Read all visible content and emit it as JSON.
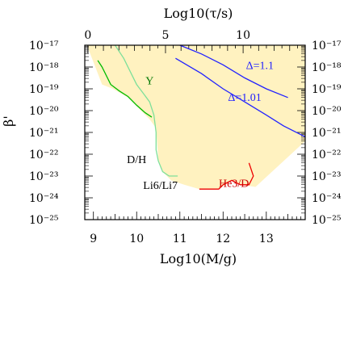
{
  "chart_data": {
    "type": "area",
    "title": "",
    "xlabel": "Log10(M/g)",
    "ylabel": "β'",
    "top_xlabel": "Log10(τ/s)",
    "xlim": [
      8.8,
      13.9
    ],
    "ylim": [
      -25,
      -17
    ],
    "top_xlim": [
      -0.2,
      14.0
    ],
    "bottom_ticks": [
      9,
      10,
      11,
      12,
      13
    ],
    "bottom_tick_labels": [
      "9",
      "10",
      "11",
      "12",
      "13"
    ],
    "top_ticks": [
      0,
      5,
      10
    ],
    "top_tick_labels": [
      "0",
      "5",
      "10"
    ],
    "y_ticks": [
      -17,
      -18,
      -19,
      -20,
      -21,
      -22,
      -23,
      -24,
      -25
    ],
    "y_tick_labels": [
      "10⁻¹⁷",
      "10⁻¹⁸",
      "10⁻¹⁹",
      "10⁻²⁰",
      "10⁻²¹",
      "10⁻²²",
      "10⁻²³",
      "10⁻²⁴",
      "10⁻²⁵"
    ],
    "allowed_region": {
      "name": "allowed region",
      "color": "#fff2c0",
      "x": [
        8.85,
        9.75,
        10.7,
        13.9,
        13.9,
        12.75,
        12.4,
        12.2,
        11.9,
        11.45,
        11.1,
        10.8,
        10.6,
        10.5,
        10.45,
        10.3,
        10.1,
        9.8,
        9.45,
        9.2,
        8.85
      ],
      "y": [
        -16.9,
        -16.9,
        -16.9,
        -16.9,
        -21.4,
        -23.5,
        -23.4,
        -23.2,
        -23.6,
        -23.6,
        -23.4,
        -23.2,
        -22.8,
        -22.2,
        -20.8,
        -20.4,
        -20.0,
        -19.4,
        -19.0,
        -18.8,
        -16.9
      ]
    },
    "series": [
      {
        "name": "",
        "color": "#00bb00",
        "x": [
          9.1,
          9.2,
          9.4,
          9.6,
          9.8,
          10.0,
          10.2,
          10.35
        ],
        "y": [
          -17.7,
          -18.0,
          -18.8,
          -19.1,
          -19.35,
          -19.75,
          -20.1,
          -20.3
        ]
      },
      {
        "name": "",
        "color": "#7de09a",
        "x": [
          9.5,
          9.7,
          9.85,
          10.0,
          10.15,
          10.3,
          10.4,
          10.45,
          10.45,
          10.5,
          10.6,
          10.75,
          10.95
        ],
        "y": [
          -17.0,
          -17.6,
          -18.2,
          -18.8,
          -19.2,
          -19.6,
          -20.2,
          -21.0,
          -21.8,
          -22.3,
          -22.8,
          -23.0,
          -23.0
        ]
      },
      {
        "name": "",
        "color": "#2222ff",
        "x": [
          11.0,
          11.5,
          12.0,
          12.5,
          13.0,
          13.5
        ],
        "y": [
          -16.9,
          -17.4,
          -17.9,
          -18.5,
          -19.0,
          -19.4
        ]
      },
      {
        "name": "",
        "color": "#2222ff",
        "x": [
          10.9,
          11.5,
          12.0,
          12.5,
          13.0,
          13.4,
          13.9
        ],
        "y": [
          -17.6,
          -18.3,
          -19.0,
          -19.6,
          -20.2,
          -20.7,
          -21.2
        ]
      },
      {
        "name": "",
        "color": "#ee0000",
        "x": [
          11.45,
          11.7,
          11.9,
          12.0,
          12.2,
          12.4,
          12.6,
          12.7,
          12.6
        ],
        "y": [
          -23.6,
          -23.6,
          -23.6,
          -23.4,
          -23.2,
          -23.4,
          -23.4,
          -23.0,
          -22.4
        ]
      }
    ],
    "annotations": [
      {
        "text": "Y",
        "x": 10.3,
        "y": -18.8,
        "color": "#007700"
      },
      {
        "text": "D/H",
        "x": 10.0,
        "y": -22.4,
        "color": "#000000"
      },
      {
        "text": "Li6/Li7",
        "x": 10.55,
        "y": -23.6,
        "color": "#000000"
      },
      {
        "text": "He3/D",
        "x": 12.25,
        "y": -23.5,
        "color": "#cc0000"
      },
      {
        "text": "Δ=1.1",
        "x": 12.85,
        "y": -18.1,
        "color": "#2222ff"
      },
      {
        "text": "Δ=1.01",
        "x": 12.5,
        "y": -19.55,
        "color": "#2222ff"
      }
    ]
  }
}
